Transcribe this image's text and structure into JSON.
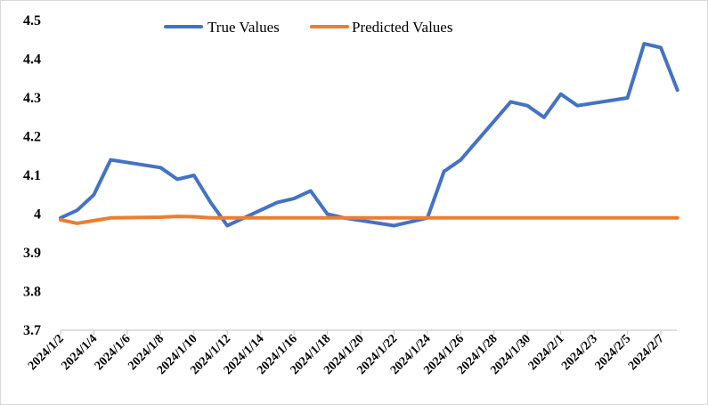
{
  "chart_data": {
    "type": "line",
    "title": "",
    "xlabel": "",
    "ylabel": "",
    "ylim": [
      3.7,
      4.5
    ],
    "y_ticks": [
      3.7,
      3.8,
      3.9,
      4,
      4.1,
      4.2,
      4.3,
      4.4,
      4.5
    ],
    "y_tick_labels": [
      "3.7",
      "3.8",
      "3.9",
      "4",
      "4.1",
      "4.2",
      "4.3",
      "4.4",
      "4.5"
    ],
    "grid": false,
    "legend_position": "top",
    "x_tick_labels": [
      "2024/1/2",
      "2024/1/4",
      "2024/1/6",
      "2024/1/8",
      "2024/1/10",
      "2024/1/12",
      "2024/1/14",
      "2024/1/16",
      "2024/1/18",
      "2024/1/20",
      "2024/1/22",
      "2024/1/24",
      "2024/1/26",
      "2024/1/28",
      "2024/1/30",
      "2024/2/1",
      "2024/2/3",
      "2024/2/5",
      "2024/2/7"
    ],
    "x": [
      "2024/1/2",
      "2024/1/3",
      "2024/1/4",
      "2024/1/5",
      "2024/1/8",
      "2024/1/9",
      "2024/1/10",
      "2024/1/11",
      "2024/1/12",
      "2024/1/15",
      "2024/1/16",
      "2024/1/17",
      "2024/1/18",
      "2024/1/19",
      "2024/1/22",
      "2024/1/23",
      "2024/1/24",
      "2024/1/25",
      "2024/1/26",
      "2024/1/29",
      "2024/1/30",
      "2024/1/31",
      "2024/2/1",
      "2024/2/2",
      "2024/2/5",
      "2024/2/6",
      "2024/2/7",
      "2024/2/8"
    ],
    "series": [
      {
        "name": "True Values",
        "color": "#4472C4",
        "values": [
          3.99,
          4.01,
          4.05,
          4.14,
          4.12,
          4.09,
          4.1,
          4.03,
          3.97,
          4.03,
          4.04,
          4.06,
          4.0,
          3.99,
          3.97,
          3.98,
          3.99,
          4.11,
          4.14,
          4.29,
          4.28,
          4.25,
          4.31,
          4.28,
          4.3,
          4.44,
          4.43,
          4.32
        ]
      },
      {
        "name": "Predicted Values",
        "color": "#ED7D31",
        "values": [
          3.985,
          3.976,
          3.983,
          3.99,
          3.992,
          3.994,
          3.993,
          3.99,
          3.99,
          3.99,
          3.99,
          3.99,
          3.99,
          3.99,
          3.99,
          3.99,
          3.99,
          3.99,
          3.99,
          3.99,
          3.99,
          3.99,
          3.99,
          3.99,
          3.99,
          3.99,
          3.99,
          3.99
        ]
      }
    ]
  }
}
